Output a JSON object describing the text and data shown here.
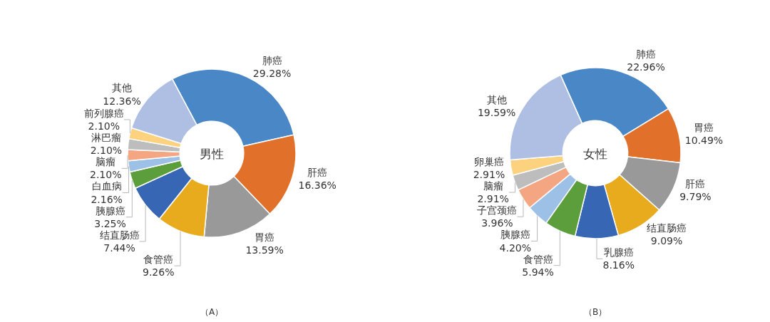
{
  "chart_data": [
    {
      "type": "donut",
      "title": "男性",
      "categories": [
        "肺癌",
        "肝癌",
        "胃癌",
        "食管癌",
        "结直肠癌",
        "胰腺癌",
        "白血病",
        "脑瘤",
        "淋巴瘤",
        "前列腺癌",
        "其他"
      ],
      "values": [
        29.28,
        16.36,
        13.59,
        9.26,
        7.44,
        3.25,
        2.16,
        2.1,
        2.1,
        2.1,
        12.36
      ],
      "value_labels": [
        "29.28%",
        "16.36%",
        "13.59%",
        "9.26%",
        "7.44%",
        "3.25%",
        "2.16%",
        "2.10%",
        "2.10%",
        "2.10%",
        "12.36%"
      ],
      "colors": [
        "#4a87c7",
        "#e0702a",
        "#999999",
        "#e8ab1e",
        "#3766b4",
        "#5d9e3c",
        "#9dc0e6",
        "#f4a582",
        "#bdbdbd",
        "#fdd27f",
        "#aebfe3"
      ],
      "annotations": [
        "（A）"
      ],
      "legend": false
    },
    {
      "type": "donut",
      "title": "女性",
      "categories": [
        "肺癌",
        "胃癌",
        "肝癌",
        "结直肠癌",
        "乳腺癌",
        "食管癌",
        "胰腺癌",
        "子宫颈癌",
        "脑瘤",
        "卵巢癌",
        "其他"
      ],
      "values": [
        22.96,
        10.49,
        9.79,
        9.09,
        8.16,
        5.94,
        4.2,
        3.96,
        2.91,
        2.91,
        19.59
      ],
      "value_labels": [
        "22.96%",
        "10.49%",
        "9.79%",
        "9.09%",
        "8.16%",
        "5.94%",
        "4.20%",
        "3.96%",
        "2.91%",
        "2.91%",
        "19.59%"
      ],
      "colors": [
        "#4a87c7",
        "#e0702a",
        "#999999",
        "#e8ab1e",
        "#3766b4",
        "#5d9e3c",
        "#9dc0e6",
        "#f4a582",
        "#bdbdbd",
        "#fdd27f",
        "#aebfe3"
      ],
      "annotations": [
        "（B）"
      ],
      "legend": false
    }
  ]
}
